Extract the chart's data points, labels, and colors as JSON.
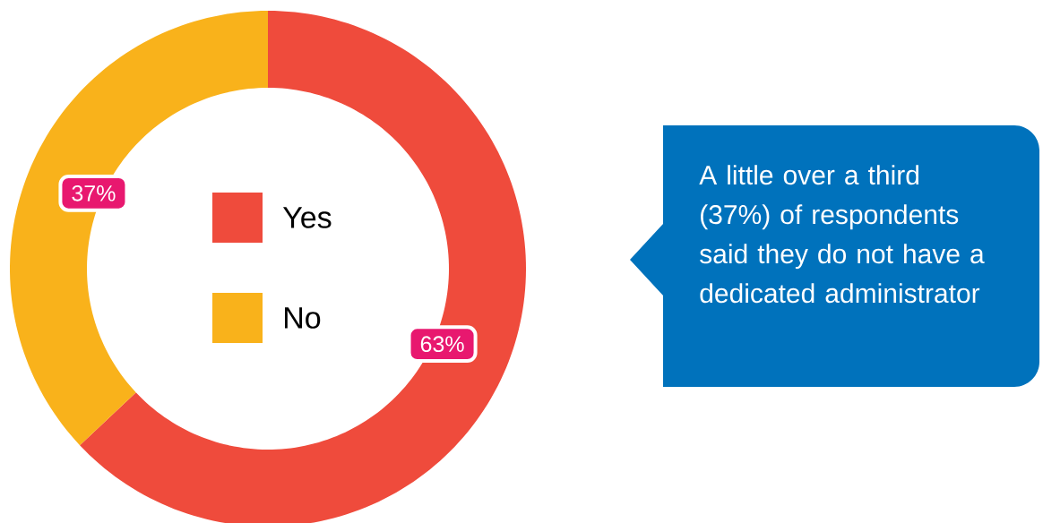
{
  "chart_data": {
    "type": "donut",
    "categories": [
      "Yes",
      "No"
    ],
    "values": [
      63,
      37
    ],
    "colors": [
      "#ef4b3c",
      "#f9b21b"
    ],
    "value_labels": [
      "63%",
      "37%"
    ],
    "legend": "center",
    "annotations": [
      "A little over a third (37%) of respondents said they do not have a dedicated administrator"
    ]
  }
}
